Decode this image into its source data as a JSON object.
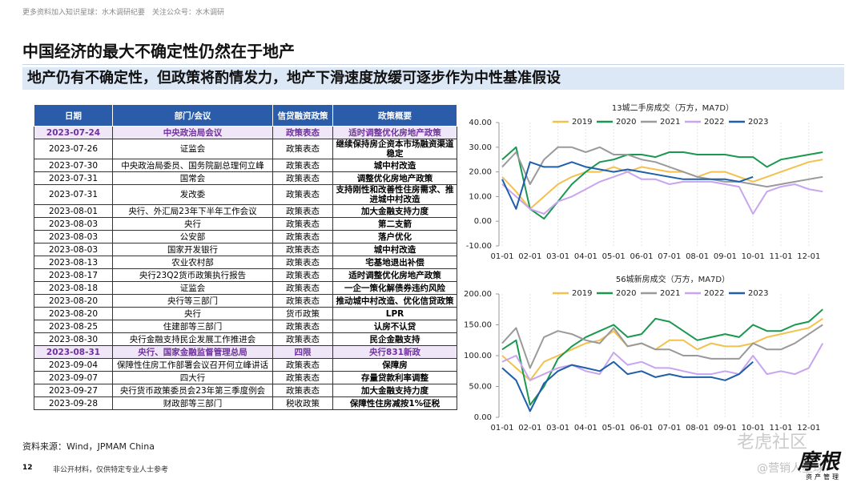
{
  "header_note": "更多资料加入知识星球：水木调研纪要　关注公众号：水木调研",
  "title": "中国经济的最大不确定性仍然在于地产",
  "subtitle": "地产仍有不确定性，但政策将酌情发力，地产下滑速度放缓可逐步作为中性基准假设",
  "table": {
    "columns": [
      "日期",
      "部门/会议",
      "信贷融资政策",
      "政策概要"
    ],
    "rows": [
      [
        "2023-07-24",
        "中央政治局会议",
        "政策表态",
        "适时调整优化房地产政策"
      ],
      [
        "2023-07-26",
        "证监会",
        "政策表态",
        "继续保持房企资本市场融资渠道稳定"
      ],
      [
        "2023-07-30",
        "中央政治局委员、国务院副总理何立峰",
        "政策表态",
        "城中村改造"
      ],
      [
        "2023-07-31",
        "国常会",
        "政策表态",
        "调整优化房地产政策"
      ],
      [
        "2023-07-31",
        "发改委",
        "政策表态",
        "支持刚性和改善性住房需求、推进城中村改造"
      ],
      [
        "2023-08-01",
        "央行、外汇局23年下半年工作会议",
        "政策表态",
        "加大金融支持力度"
      ],
      [
        "2023-08-03",
        "央行",
        "政策表态",
        "第二支箭"
      ],
      [
        "2023-08-03",
        "公安部",
        "政策表态",
        "落户优化"
      ],
      [
        "2023-08-03",
        "国家开发银行",
        "政策表态",
        "城中村改造"
      ],
      [
        "2023-08-13",
        "农业农村部",
        "政策表态",
        "宅基地退出补偿"
      ],
      [
        "2023-08-17",
        "央行23Q2货币政策执行报告",
        "政策表态",
        "适时调整优化房地产政策"
      ],
      [
        "2023-08-18",
        "证监会",
        "政策表态",
        "一企一策化解债券违约风险"
      ],
      [
        "2023-08-20",
        "央行等三部门",
        "政策表态",
        "推动城中村改造、优化信贷政策"
      ],
      [
        "2023-08-20",
        "央行",
        "货币政策",
        "LPR"
      ],
      [
        "2023-08-25",
        "住建部等三部门",
        "政策表态",
        "认房不认贷"
      ],
      [
        "2023-08-30",
        "央行金融支持民企发展工作推进会",
        "政策表态",
        "民企金融支持"
      ],
      [
        "2023-08-31",
        "央行、国家金融监督管理总局",
        "四限",
        "央行831新政"
      ],
      [
        "2023-09-04",
        "保障性住房工作部署会议召开何立峰讲话",
        "政策表态",
        "保障房"
      ],
      [
        "2023-09-07",
        "四大行",
        "政策表态",
        "存量贷款利率调整"
      ],
      [
        "2023-09-27",
        "央行货币政策委员会23年第三季度例会",
        "政策表态",
        "加大金融支持力度"
      ],
      [
        "2023-09-28",
        "财政部等三部门",
        "税收政策",
        "保障性住房减按1%征税"
      ]
    ]
  },
  "source": "资料来源：Wind，JPMAM China",
  "page_number": "12",
  "footer_note": "非公开材料，仅供特定专业人士参考",
  "logo": {
    "name": "摩根",
    "sub": "资产管理"
  },
  "watermark": [
    "老虎社区",
    "@营销人星球"
  ],
  "chart_data": [
    {
      "type": "line",
      "title": "13城二手房成交（万方，MA7D）",
      "x": [
        "01-01",
        null,
        "02-01",
        null,
        "03-01",
        null,
        "04-01",
        null,
        "05-01",
        null,
        "06-01",
        null,
        "07-01",
        null,
        "08-01",
        null,
        "09-01",
        null,
        "10-01",
        null,
        "11-01",
        null,
        "12-01",
        null
      ],
      "ylim": [
        -10,
        40
      ],
      "yticks": [
        {
          "value": -10,
          "label": "-10.00"
        },
        {
          "value": 0,
          "label": "0.00"
        },
        {
          "value": 10,
          "label": "10.00"
        },
        {
          "value": 20,
          "label": "20.00"
        },
        {
          "value": 30,
          "label": "30.00"
        },
        {
          "value": 40,
          "label": "40.00"
        }
      ],
      "series": [
        {
          "name": "2019",
          "color": "#f2c14e",
          "values": [
            18,
            12,
            5,
            10,
            15,
            18,
            20,
            20,
            22,
            20,
            22,
            21,
            20,
            20,
            18,
            20,
            20,
            18,
            16,
            18,
            20,
            22,
            24,
            25
          ]
        },
        {
          "name": "2020",
          "color": "#1a9850",
          "values": [
            25,
            30,
            5,
            1,
            8,
            15,
            20,
            24,
            25,
            27,
            27,
            26,
            28,
            28,
            27,
            27,
            27,
            26,
            26,
            22,
            25,
            26,
            27,
            28
          ]
        },
        {
          "name": "2021",
          "color": "#9a9a9a",
          "values": [
            22,
            28,
            15,
            25,
            30,
            30,
            28,
            30,
            27,
            27,
            25,
            24,
            22,
            20,
            18,
            17,
            16,
            16,
            15,
            14,
            15,
            16,
            17,
            18
          ]
        },
        {
          "name": "2022",
          "color": "#c7a5f0",
          "values": [
            15,
            10,
            5,
            3,
            8,
            10,
            13,
            16,
            18,
            20,
            17,
            17,
            15,
            16,
            16,
            16,
            15,
            14,
            3,
            12,
            14,
            15,
            13,
            12
          ]
        },
        {
          "name": "2023",
          "color": "#1f5fa8",
          "values": [
            17,
            5,
            24,
            22,
            22,
            24,
            22,
            21,
            20,
            21,
            20,
            19,
            18,
            17,
            17,
            17,
            17,
            16,
            18,
            null,
            null,
            null,
            null,
            null
          ]
        }
      ]
    },
    {
      "type": "line",
      "title": "56城新房成交（万方，MA7D）",
      "x": [
        "01-01",
        null,
        "02-01",
        null,
        "03-01",
        null,
        "04-01",
        null,
        "05-01",
        null,
        "06-01",
        null,
        "07-01",
        null,
        "08-01",
        null,
        "09-01",
        null,
        "10-01",
        null,
        "11-01",
        null,
        "12-01",
        null
      ],
      "ylim": [
        0,
        200
      ],
      "yticks": [
        {
          "value": 0,
          "label": "0.00"
        },
        {
          "value": 50,
          "label": "50.00"
        },
        {
          "value": 100,
          "label": "100.00"
        },
        {
          "value": 150,
          "label": "150.00"
        },
        {
          "value": 200,
          "label": "200.00"
        }
      ],
      "series": [
        {
          "name": "2019",
          "color": "#f2c14e",
          "values": [
            100,
            80,
            60,
            90,
            100,
            110,
            120,
            125,
            140,
            115,
            120,
            110,
            125,
            125,
            110,
            120,
            115,
            115,
            120,
            130,
            135,
            140,
            145,
            160
          ]
        },
        {
          "name": "2020",
          "color": "#1a9850",
          "values": [
            110,
            125,
            20,
            50,
            95,
            115,
            130,
            140,
            150,
            130,
            135,
            160,
            155,
            140,
            125,
            130,
            135,
            130,
            150,
            140,
            140,
            150,
            155,
            175
          ]
        },
        {
          "name": "2021",
          "color": "#9a9a9a",
          "values": [
            120,
            145,
            80,
            130,
            140,
            135,
            125,
            120,
            145,
            115,
            120,
            110,
            110,
            100,
            100,
            95,
            95,
            95,
            120,
            110,
            110,
            120,
            135,
            150
          ]
        },
        {
          "name": "2022",
          "color": "#c7a5f0",
          "values": [
            90,
            100,
            60,
            70,
            80,
            85,
            75,
            70,
            105,
            85,
            90,
            80,
            80,
            75,
            70,
            70,
            75,
            70,
            100,
            70,
            75,
            70,
            80,
            120
          ]
        },
        {
          "name": "2023",
          "color": "#1f5fa8",
          "values": [
            80,
            60,
            10,
            55,
            75,
            85,
            80,
            75,
            90,
            70,
            75,
            65,
            70,
            65,
            65,
            65,
            60,
            70,
            90,
            null,
            null,
            null,
            null,
            null
          ]
        }
      ]
    }
  ]
}
